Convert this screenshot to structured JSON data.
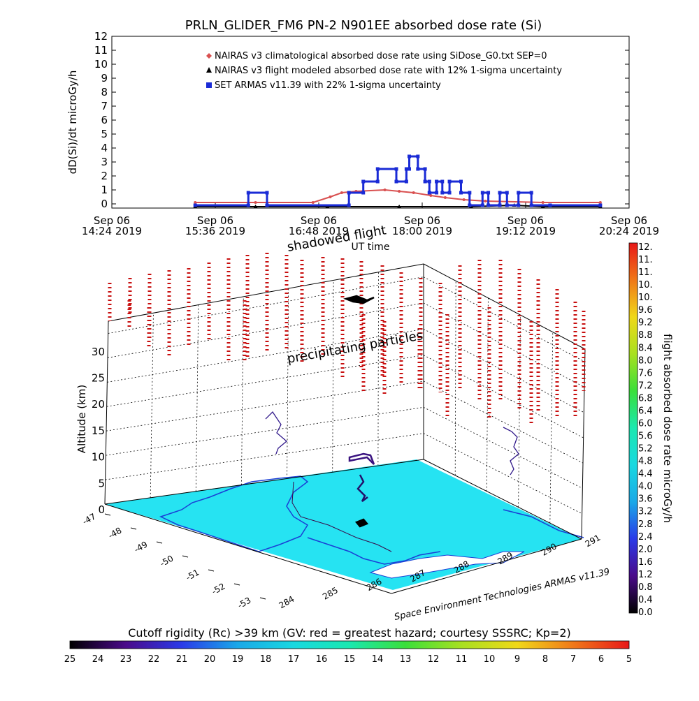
{
  "title": "PRLN_GLIDER_FM6 PN-2 N901EE absorbed dose rate (Si)",
  "chart_data": [
    {
      "type": "line",
      "panel": "dose-rate-timeseries",
      "ylabel": "dD(Si)/dt microGy/h",
      "xlabel": "UT time",
      "ylim": [
        0,
        12
      ],
      "yticks": [
        "0",
        "1",
        "2",
        "3",
        "4",
        "5",
        "6",
        "7",
        "8",
        "9",
        "10",
        "11",
        "12"
      ],
      "xticks": [
        {
          "t": 0,
          "line1": "Sep 06",
          "line2": "14:24 2019"
        },
        {
          "t": 72,
          "line1": "Sep 06",
          "line2": "15:36 2019"
        },
        {
          "t": 144,
          "line1": "Sep 06",
          "line2": "16:48 2019"
        },
        {
          "t": 216,
          "line1": "Sep 06",
          "line2": "18:00 2019"
        },
        {
          "t": 288,
          "line1": "Sep 06",
          "line2": "19:12 2019"
        },
        {
          "t": 360,
          "line1": "Sep 06",
          "line2": "20:24 2019"
        }
      ],
      "xlim_minutes": [
        0,
        360
      ],
      "legend": [
        {
          "symbol": "diamond",
          "color": "#d95050",
          "label": "NAIRAS v3 climatological absorbed dose rate using SiDose_G0.txt SEP=0"
        },
        {
          "symbol": "triangle",
          "color": "#000000",
          "label": "NAIRAS v3 flight modeled absorbed dose rate with 12% 1-sigma uncertainty"
        },
        {
          "symbol": "square",
          "color": "#1a2bd6",
          "label": "SET ARMAS v11.39 with 22% 1-sigma uncertainty"
        }
      ],
      "legend_position": "top",
      "series": [
        {
          "name": "NAIRAS v3 climatological absorbed dose rate using SiDose_G0.txt SEP=0",
          "color": "#d95050",
          "x": [
            58,
            100,
            140,
            152,
            160,
            170,
            190,
            200,
            210,
            222,
            232,
            245,
            260,
            300,
            340
          ],
          "y": [
            0.1,
            0.1,
            0.1,
            0.5,
            0.8,
            0.9,
            1.0,
            0.9,
            0.8,
            0.6,
            0.45,
            0.3,
            0.2,
            0.1,
            0.1
          ]
        },
        {
          "name": "NAIRAS v3 flight modeled absorbed dose rate with 12% 1-sigma uncertainty",
          "color": "#000000",
          "x": [
            58,
            100,
            150,
            200,
            250,
            280,
            300,
            340
          ],
          "y": [
            -0.2,
            -0.2,
            -0.2,
            -0.2,
            -0.2,
            -0.1,
            -0.2,
            -0.2
          ]
        },
        {
          "name": "SET ARMAS v11.39 with 22% 1-sigma uncertainty",
          "color": "#1a2bd6",
          "x": [
            58,
            95,
            95,
            108,
            108,
            165,
            165,
            175,
            175,
            185,
            185,
            198,
            198,
            205,
            205,
            207,
            207,
            213,
            213,
            218,
            218,
            221,
            221,
            226,
            226,
            230,
            230,
            235,
            235,
            243,
            243,
            249,
            249,
            258,
            258,
            262,
            262,
            270,
            270,
            275,
            275,
            283,
            283,
            292,
            292,
            305,
            305,
            340
          ],
          "y": [
            -0.1,
            -0.1,
            0.8,
            0.8,
            -0.1,
            -0.1,
            0.8,
            0.8,
            1.6,
            1.6,
            2.5,
            2.5,
            1.6,
            1.6,
            2.5,
            2.5,
            3.4,
            3.4,
            2.5,
            2.5,
            1.6,
            1.6,
            0.8,
            0.8,
            1.6,
            1.6,
            0.8,
            0.8,
            1.6,
            1.6,
            0.8,
            0.8,
            -0.1,
            -0.1,
            0.8,
            0.8,
            -0.1,
            -0.1,
            0.8,
            0.8,
            -0.1,
            -0.1,
            0.8,
            0.8,
            -0.1,
            -0.1,
            -0.1,
            -0.1
          ]
        }
      ]
    },
    {
      "type": "scatter",
      "panel": "3d-flight-track",
      "zlabel": "Altitude (km)",
      "zlim": [
        0,
        35
      ],
      "zticks": [
        "0",
        "5",
        "10",
        "15",
        "20",
        "25",
        "30"
      ],
      "lat_ticks": [
        "-47",
        "-48",
        "-49",
        "-50",
        "-51",
        "-52",
        "-53"
      ],
      "lon_ticks": [
        "284",
        "285",
        "286",
        "287",
        "288",
        "289",
        "290",
        "291"
      ],
      "annotations": [
        "shadowed flight",
        "precipitating particles",
        "Space Environment Technologies ARMAS v11.39"
      ]
    },
    {
      "type": "heatmap",
      "panel": "colorbar-dose",
      "label": "flight absorbed dose rate microGy/h",
      "ticks": [
        "0.0",
        "0.4",
        "0.8",
        "1.2",
        "1.6",
        "2.0",
        "2.4",
        "2.8",
        "3.2",
        "3.6",
        "4.0",
        "4.4",
        "4.8",
        "5.2",
        "5.6",
        "6.0",
        "6.4",
        "6.8",
        "7.2",
        "7.6",
        "8.0",
        "8.4",
        "8.8",
        "9.2",
        "9.6",
        "10.",
        "10.",
        "11.",
        "11.",
        "12."
      ],
      "range": [
        0,
        12
      ]
    },
    {
      "type": "heatmap",
      "panel": "colorbar-cutoff",
      "label": "Cutoff rigidity (Rc) >39 km (GV: red = greatest hazard; courtesy SSSRC; Kp=2)",
      "ticks": [
        "25",
        "24",
        "23",
        "22",
        "21",
        "20",
        "19",
        "18",
        "17",
        "16",
        "15",
        "14",
        "13",
        "12",
        "11",
        "10",
        "9",
        "8",
        "7",
        "6",
        "5"
      ],
      "range": [
        25,
        5
      ]
    }
  ]
}
